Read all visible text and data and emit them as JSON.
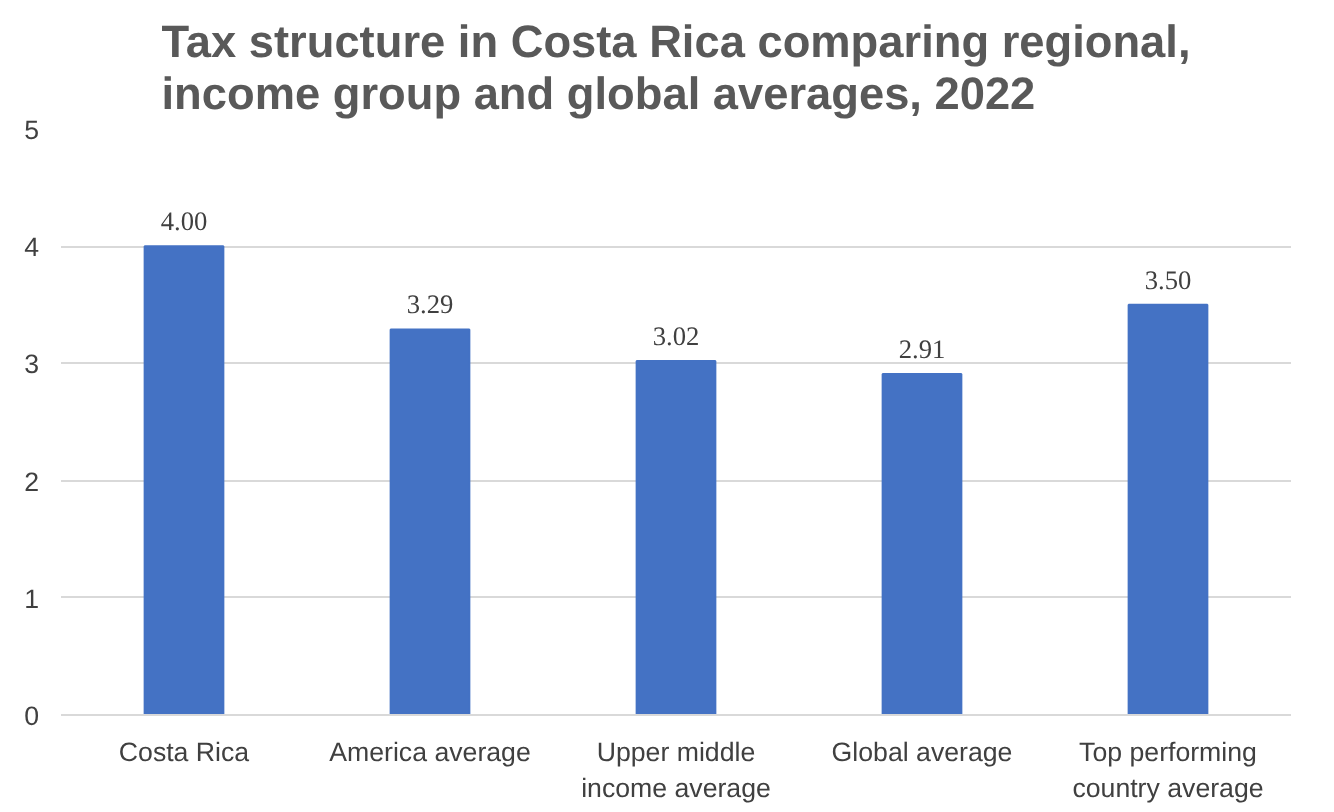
{
  "chart_data": {
    "type": "bar",
    "title": "Tax structure in Costa Rica comparing regional,\nincome group and global averages, 2022",
    "categories": [
      "Costa Rica",
      "America average",
      "Upper middle\nincome average",
      "Global average",
      "Top performing\ncountry average"
    ],
    "values": [
      4.0,
      3.29,
      3.02,
      2.91,
      3.5
    ],
    "value_labels": [
      "4.00",
      "3.29",
      "3.02",
      "2.91",
      "3.50"
    ],
    "color": "#4472c4",
    "ylim": [
      0,
      5
    ],
    "yticks": [
      0,
      1,
      2,
      3,
      4,
      5
    ],
    "grid": "y"
  }
}
